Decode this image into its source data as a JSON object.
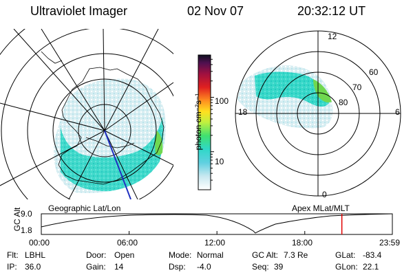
{
  "header": {
    "instrument": "Ultraviolet Imager",
    "date": "02 Nov 07",
    "time": "20:32:12 UT"
  },
  "colorbar": {
    "label": "photon cm⁻²s⁻¹",
    "ticks": [
      {
        "value": 100,
        "label": "100"
      },
      {
        "value": 10,
        "label": "10"
      }
    ],
    "scale": "log"
  },
  "geo_panel": {
    "label": "Geographic Lat/Lon"
  },
  "apex_panel": {
    "label": "Apex MLat/MLT",
    "mlt_labels": {
      "top": "12",
      "right": "6",
      "bottom": "0",
      "left": "18"
    },
    "mlat_labels": [
      "60",
      "70",
      "80"
    ]
  },
  "orbit_plot": {
    "ylabel": "GC Alt",
    "y_ticks": [
      "9.0",
      "1.8"
    ],
    "x_ticks": [
      "00:00",
      "06:00",
      "12:00",
      "18:00",
      "23:59"
    ],
    "marker_time": "20:32"
  },
  "status": {
    "row1": [
      {
        "label": "Flt:",
        "value": "LBHL"
      },
      {
        "label": "Door:",
        "value": "Open"
      },
      {
        "label": "Mode:",
        "value": "Normal"
      },
      {
        "label": "GC Alt:",
        "value": "7.3 Re"
      },
      {
        "label": "GLat:",
        "value": "-83.4"
      }
    ],
    "row2": [
      {
        "label": "IP:",
        "value": "36.0"
      },
      {
        "label": "Gain:",
        "value": "14"
      },
      {
        "label": "Dsp:",
        "value": "-4.0"
      },
      {
        "label": "Seq:",
        "value": "39"
      },
      {
        "label": "GLon:",
        "value": "22.1"
      }
    ]
  },
  "colors": {
    "orbit_marker": "#e00000",
    "aurora_low": "#c8e8f0",
    "aurora_mid": "#30d8c8",
    "aurora_high": "#60d040"
  }
}
